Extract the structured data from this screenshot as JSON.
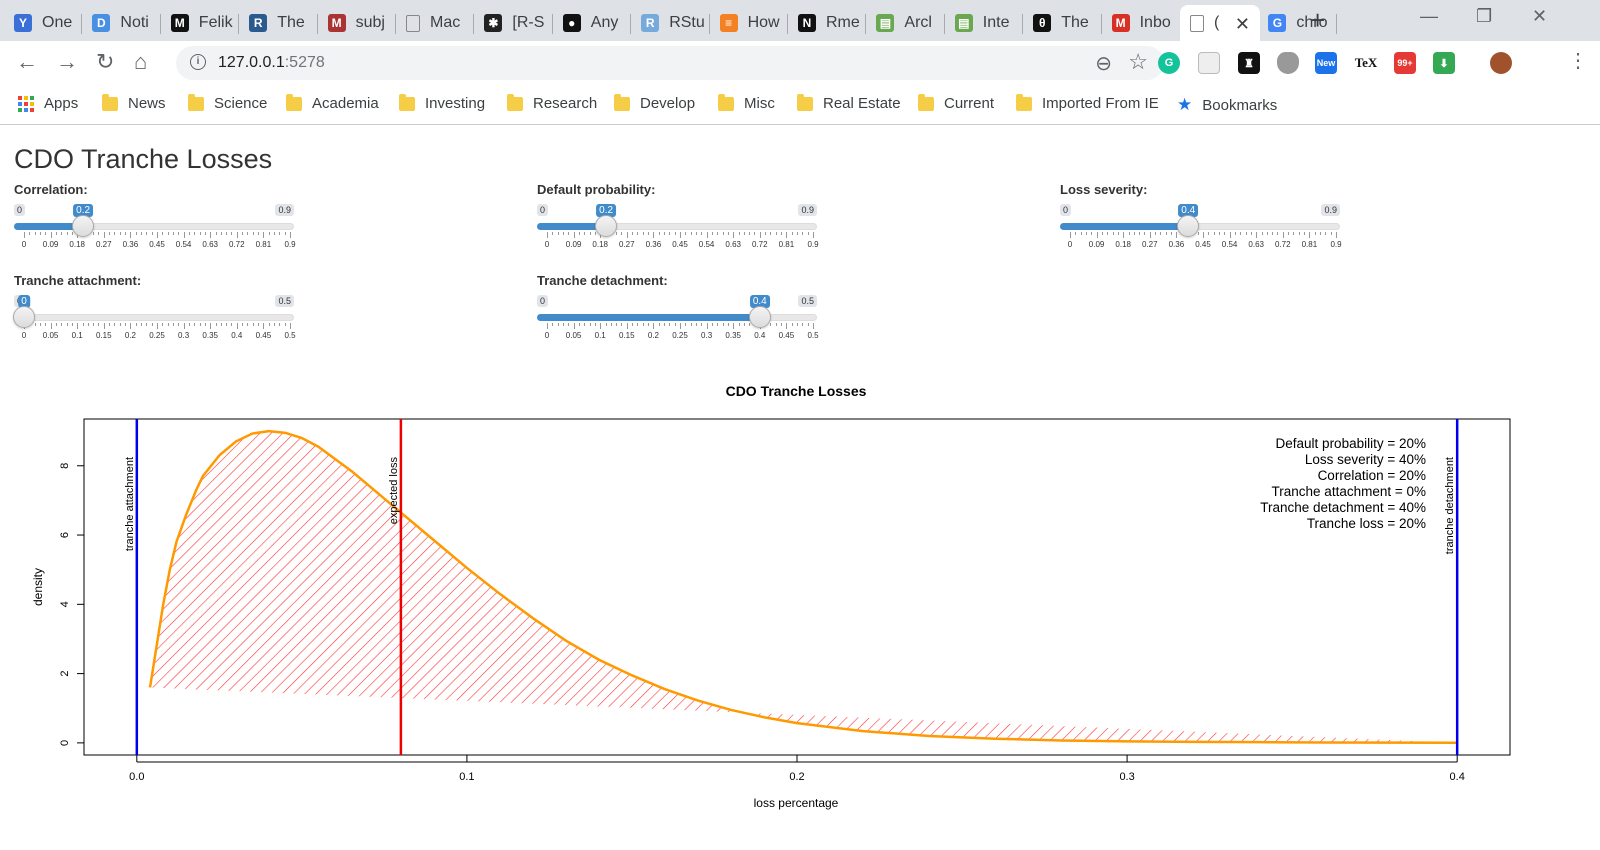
{
  "browser": {
    "tabs": [
      {
        "label": "One",
        "icon": "one-icon",
        "color": "#3b6fd8",
        "glyph": "Y"
      },
      {
        "label": "Noti",
        "icon": "notion-blue-icon",
        "color": "#4a90e2",
        "glyph": "D"
      },
      {
        "label": "Felik",
        "icon": "felik-icon",
        "color": "#111111",
        "glyph": "M"
      },
      {
        "label": "The",
        "icon": "r-blogger-icon",
        "color": "#2b5b8e",
        "glyph": "R"
      },
      {
        "label": "subj",
        "icon": "ma-icon",
        "color": "#a33",
        "glyph": "M"
      },
      {
        "label": "Mac",
        "icon": "page-icon",
        "color": "#888",
        "glyph": ""
      },
      {
        "label": "[R-S",
        "icon": "r-sig-icon",
        "color": "#222",
        "glyph": "✱"
      },
      {
        "label": "Any",
        "icon": "github-icon",
        "color": "#111",
        "glyph": "●"
      },
      {
        "label": "RStu",
        "icon": "rstudio-icon",
        "color": "#75aadb",
        "glyph": "R"
      },
      {
        "label": "How",
        "icon": "stackoverflow-icon",
        "color": "#f48024",
        "glyph": "≡"
      },
      {
        "label": "Rme",
        "icon": "notion-icon",
        "color": "#111",
        "glyph": "N"
      },
      {
        "label": "Arcl",
        "icon": "archive-icon",
        "color": "#6aa84f",
        "glyph": "▤"
      },
      {
        "label": "Inte",
        "icon": "archive-icon",
        "color": "#6aa84f",
        "glyph": "▤"
      },
      {
        "label": "The",
        "icon": "the-icon",
        "color": "#111",
        "glyph": "θ"
      },
      {
        "label": "Inbo",
        "icon": "gmail-icon",
        "color": "#d93025",
        "glyph": "M"
      },
      {
        "label": "(",
        "icon": "page-icon",
        "color": "#888",
        "glyph": ""
      },
      {
        "label": "chro",
        "icon": "google-icon",
        "color": "#4285f4",
        "glyph": "G"
      }
    ],
    "url_host": "127.0.0.1",
    "url_port": ":5278",
    "bookmarks": [
      {
        "label": "Apps"
      },
      {
        "label": "News"
      },
      {
        "label": "Science"
      },
      {
        "label": "Academia"
      },
      {
        "label": "Investing"
      },
      {
        "label": "Research"
      },
      {
        "label": "Develop"
      },
      {
        "label": "Misc"
      },
      {
        "label": "Real Estate"
      },
      {
        "label": "Current"
      },
      {
        "label": "Imported From IE"
      },
      {
        "label": "Bookmarks"
      }
    ]
  },
  "app": {
    "title": "CDO Tranche Losses",
    "sliders": [
      {
        "name": "correlation-slider",
        "label": "Correlation:",
        "min": 0,
        "max": 0.9,
        "value": 0.2,
        "min_label": "0",
        "max_label": "0.9",
        "value_label": "0.2",
        "ticks": [
          "0",
          "0.09",
          "0.18",
          "0.27",
          "0.36",
          "0.45",
          "0.54",
          "0.63",
          "0.72",
          "0.81",
          "0.9"
        ],
        "fill_from": 0
      },
      {
        "name": "default-probability-slider",
        "label": "Default probability:",
        "min": 0,
        "max": 0.9,
        "value": 0.2,
        "min_label": "0",
        "max_label": "0.9",
        "value_label": "0.2",
        "ticks": [
          "0",
          "0.09",
          "0.18",
          "0.27",
          "0.36",
          "0.45",
          "0.54",
          "0.63",
          "0.72",
          "0.81",
          "0.9"
        ],
        "fill_from": 0
      },
      {
        "name": "loss-severity-slider",
        "label": "Loss severity:",
        "min": 0,
        "max": 0.9,
        "value": 0.4,
        "min_label": "0",
        "max_label": "0.9",
        "value_label": "0.4",
        "ticks": [
          "0",
          "0.09",
          "0.18",
          "0.27",
          "0.36",
          "0.45",
          "0.54",
          "0.63",
          "0.72",
          "0.81",
          "0.9"
        ],
        "fill_from": 0
      },
      {
        "name": "tranche-attachment-slider",
        "label": "Tranche attachment:",
        "min": 0,
        "max": 0.5,
        "value": 0,
        "min_label": "0",
        "max_label": "0.5",
        "value_label": "0",
        "ticks": [
          "0",
          "0.05",
          "0.1",
          "0.15",
          "0.2",
          "0.25",
          "0.3",
          "0.35",
          "0.4",
          "0.45",
          "0.5"
        ],
        "fill_from": 0
      },
      {
        "name": "tranche-detachment-slider",
        "label": "Tranche detachment:",
        "min": 0,
        "max": 0.5,
        "value": 0.4,
        "min_label": "0",
        "max_label": "0.5",
        "value_label": "0.4",
        "ticks": [
          "0",
          "0.05",
          "0.1",
          "0.15",
          "0.2",
          "0.25",
          "0.3",
          "0.35",
          "0.4",
          "0.45",
          "0.5"
        ],
        "fill_from": 0
      }
    ]
  },
  "chart_data": {
    "type": "line",
    "title": "CDO Tranche Losses",
    "xlabel": "loss percentage",
    "ylabel": "density",
    "xlim": [
      -0.016,
      0.416
    ],
    "ylim": [
      -0.35,
      9.35
    ],
    "xticks": [
      0.0,
      0.1,
      0.2,
      0.3,
      0.4
    ],
    "xtick_labels": [
      "0.0",
      "0.1",
      "0.2",
      "0.3",
      "0.4"
    ],
    "yticks": [
      0,
      2,
      4,
      6,
      8
    ],
    "yticks_labels": [
      "0",
      "2",
      "4",
      "6",
      "8"
    ],
    "series": [
      {
        "color": "#ff9900",
        "x": [
          0.004,
          0.006,
          0.008,
          0.01,
          0.012,
          0.015,
          0.018,
          0.02,
          0.025,
          0.03,
          0.035,
          0.04,
          0.045,
          0.05,
          0.055,
          0.06,
          0.065,
          0.07,
          0.075,
          0.08,
          0.09,
          0.1,
          0.11,
          0.12,
          0.13,
          0.14,
          0.15,
          0.16,
          0.17,
          0.18,
          0.19,
          0.2,
          0.22,
          0.24,
          0.26,
          0.28,
          0.3,
          0.32,
          0.34,
          0.36,
          0.38,
          0.4
        ],
        "y": [
          1.6,
          2.8,
          4.0,
          5.0,
          5.8,
          6.6,
          7.3,
          7.7,
          8.3,
          8.7,
          8.93,
          9.0,
          8.95,
          8.8,
          8.55,
          8.2,
          7.85,
          7.45,
          7.05,
          6.65,
          5.85,
          5.05,
          4.3,
          3.6,
          2.95,
          2.4,
          1.95,
          1.55,
          1.22,
          0.95,
          0.74,
          0.57,
          0.34,
          0.2,
          0.12,
          0.07,
          0.045,
          0.03,
          0.02,
          0.012,
          0.007,
          0.004
        ]
      }
    ],
    "shaded_region": {
      "from": 0.004,
      "to": 0.4,
      "fill": "#ff3333",
      "pattern": "hatched"
    },
    "vlines": [
      {
        "x": 0.0,
        "color": "#0000ee",
        "label": "tranche attachment"
      },
      {
        "x": 0.08,
        "color": "#ee0000",
        "label": "expected loss"
      },
      {
        "x": 0.4,
        "color": "#0000ee",
        "label": "tranche detachment"
      }
    ],
    "annotations": [
      "Default probability = 20%",
      "Loss severity = 40%",
      "Correlation = 20%",
      "Tranche attachment = 0%",
      "Tranche detachment = 40%",
      "Tranche loss = 20%"
    ],
    "legend": "top-right",
    "grid": false
  }
}
